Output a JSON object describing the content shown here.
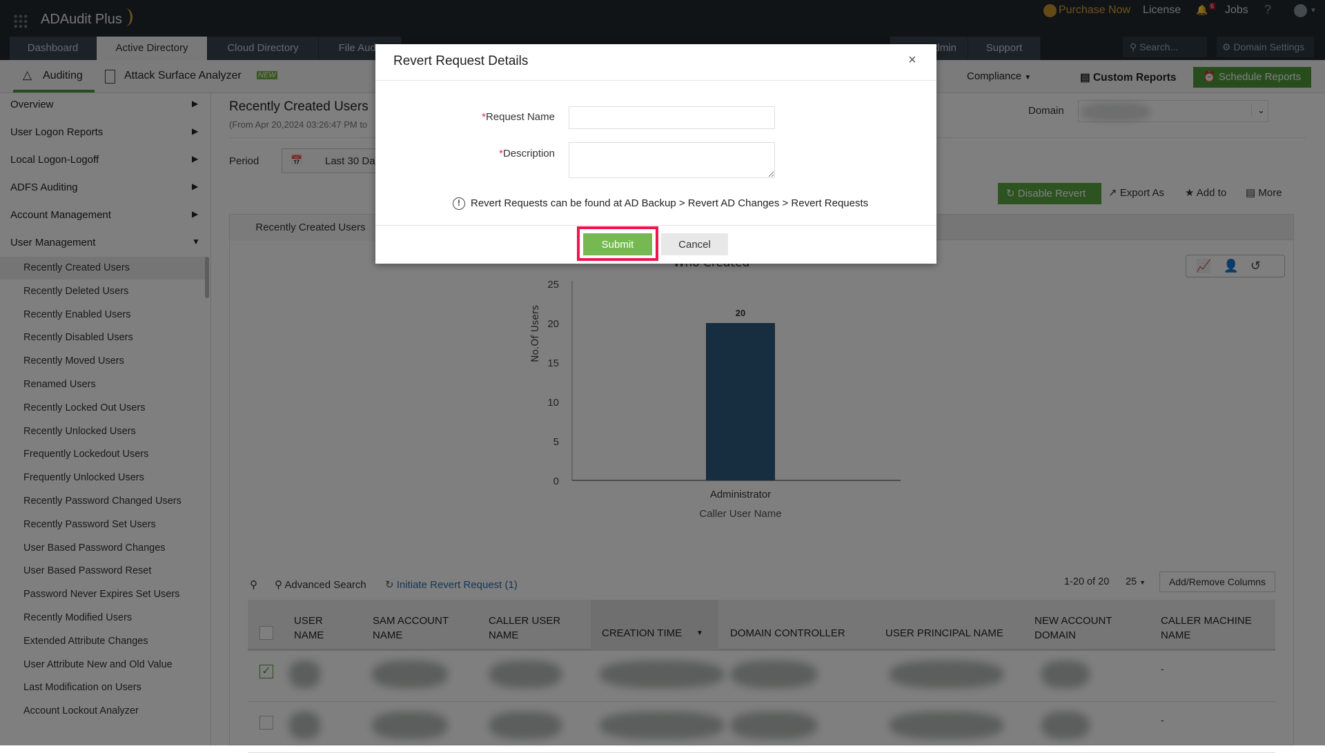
{
  "app": {
    "name": "ADAudit Plus",
    "purchase": "Purchase Now",
    "license": "License",
    "notifications": "6",
    "jobs": "Jobs",
    "help": "?"
  },
  "tabs": [
    {
      "label": "Dashboard"
    },
    {
      "label": "Active Directory"
    },
    {
      "label": "Cloud Directory"
    },
    {
      "label": "File Audit"
    },
    {
      "label": "Admin"
    },
    {
      "label": "Support"
    }
  ],
  "search": {
    "placeholder": "Search..."
  },
  "domain_settings": "Domain Settings",
  "subnav": {
    "auditing": "Auditing",
    "asa": "Attack Surface Analyzer",
    "new_badge": "NEW",
    "compliance": "Compliance",
    "custom_reports": "Custom Reports",
    "schedule_reports": "Schedule Reports"
  },
  "sidebar": {
    "sections": [
      {
        "label": "Overview"
      },
      {
        "label": "User Logon Reports"
      },
      {
        "label": "Local Logon-Logoff"
      },
      {
        "label": "ADFS Auditing"
      },
      {
        "label": "Account Management"
      },
      {
        "label": "User Management"
      }
    ],
    "items": [
      {
        "label": "Recently Created Users"
      },
      {
        "label": "Recently Deleted Users"
      },
      {
        "label": "Recently Enabled Users"
      },
      {
        "label": "Recently Disabled Users"
      },
      {
        "label": "Recently Moved Users"
      },
      {
        "label": "Renamed Users"
      },
      {
        "label": "Recently Locked Out Users"
      },
      {
        "label": "Recently Unlocked Users"
      },
      {
        "label": "Frequently Lockedout Users"
      },
      {
        "label": "Frequently Unlocked Users"
      },
      {
        "label": "Recently Password Changed Users"
      },
      {
        "label": "Recently Password Set Users"
      },
      {
        "label": "User Based Password Changes"
      },
      {
        "label": "User Based Password Reset"
      },
      {
        "label": "Password Never Expires Set Users"
      },
      {
        "label": "Recently Modified Users"
      },
      {
        "label": "Extended Attribute Changes"
      },
      {
        "label": "User Attribute New and Old Value"
      },
      {
        "label": "Last Modification on Users"
      },
      {
        "label": "Account Lockout Analyzer"
      }
    ]
  },
  "report": {
    "title": "Recently Created Users",
    "subtitle": "(From Apr 20,2024 03:26:47 PM to",
    "period_label": "Period",
    "period_value": "Last 30 Da",
    "domain_label": "Domain",
    "tab": "Recently Created Users"
  },
  "actions": {
    "disable_revert": "Disable Revert",
    "export": "Export As",
    "add_to": "Add to",
    "more": "More"
  },
  "chart_data": {
    "type": "bar",
    "title": "Who Created",
    "categories": [
      "Administrator"
    ],
    "values": [
      20
    ],
    "xlabel": "Caller User Name",
    "ylabel": "No.Of Users",
    "ylim": [
      0,
      25
    ],
    "yticks": [
      0,
      5,
      10,
      15,
      20,
      25
    ],
    "bar_color": "#2f5a80"
  },
  "table": {
    "advanced_search": "Advanced Search",
    "initiate_revert": "Initiate Revert Request (1)",
    "pagination": "1-20 of 20",
    "page_size": "25",
    "add_remove": "Add/Remove Columns",
    "columns": [
      [
        "USER",
        "NAME"
      ],
      [
        "SAM ACCOUNT",
        "NAME"
      ],
      [
        "CALLER USER",
        "NAME"
      ],
      [
        "CREATION TIME",
        ""
      ],
      [
        "DOMAIN CONTROLLER",
        ""
      ],
      [
        "USER PRINCIPAL NAME",
        ""
      ],
      [
        "NEW ACCOUNT",
        "DOMAIN"
      ],
      [
        "CALLER MACHINE",
        "NAME"
      ]
    ],
    "rows": [
      {
        "checked": true,
        "caller_machine": "-"
      },
      {
        "checked": false,
        "caller_machine": "-"
      }
    ]
  },
  "modal": {
    "title": "Revert Request Details",
    "close": "×",
    "request_name_label": "Request Name",
    "description_label": "Description",
    "required": "*",
    "request_name_value": "",
    "description_value": "",
    "info": "Revert Requests can be found at AD Backup > Revert AD Changes > Revert Requests",
    "submit": "Submit",
    "cancel": "Cancel",
    "highlight_color": "#f0144f",
    "submit_color": "#76b852"
  }
}
